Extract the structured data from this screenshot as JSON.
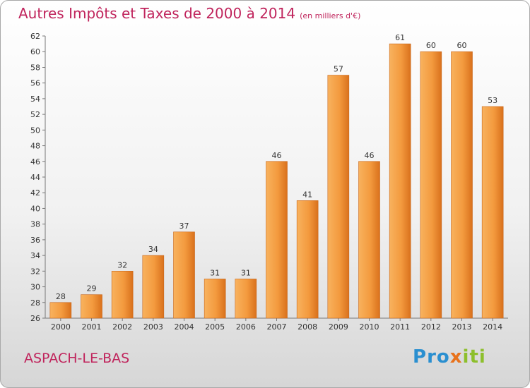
{
  "header": {
    "title": "Autres Impôts et Taxes de 2000 à 2014",
    "subtitle": "(en milliers d'€)"
  },
  "footer": {
    "place": "ASPACH-LE-BAS",
    "logo_letters": [
      {
        "ch": "P",
        "color": "#2a8fd0"
      },
      {
        "ch": "r",
        "color": "#2a8fd0"
      },
      {
        "ch": "o",
        "color": "#2a8fd0"
      },
      {
        "ch": "x",
        "color": "#e8721c"
      },
      {
        "ch": "i",
        "color": "#8dbf2c"
      },
      {
        "ch": "t",
        "color": "#8dbf2c"
      },
      {
        "ch": "i",
        "color": "#8dbf2c"
      }
    ]
  },
  "chart_data": {
    "type": "bar",
    "categories": [
      "2000",
      "2001",
      "2002",
      "2003",
      "2004",
      "2005",
      "2006",
      "2007",
      "2008",
      "2009",
      "2010",
      "2011",
      "2012",
      "2013",
      "2014"
    ],
    "values": [
      28,
      29,
      32,
      34,
      37,
      31,
      31,
      46,
      41,
      57,
      46,
      61,
      60,
      60,
      53
    ],
    "ylim": [
      26,
      62
    ],
    "ytick_step": 2,
    "grid": false,
    "bar_color": "#f08a2c",
    "bar_color_light": "#f8b25e"
  }
}
